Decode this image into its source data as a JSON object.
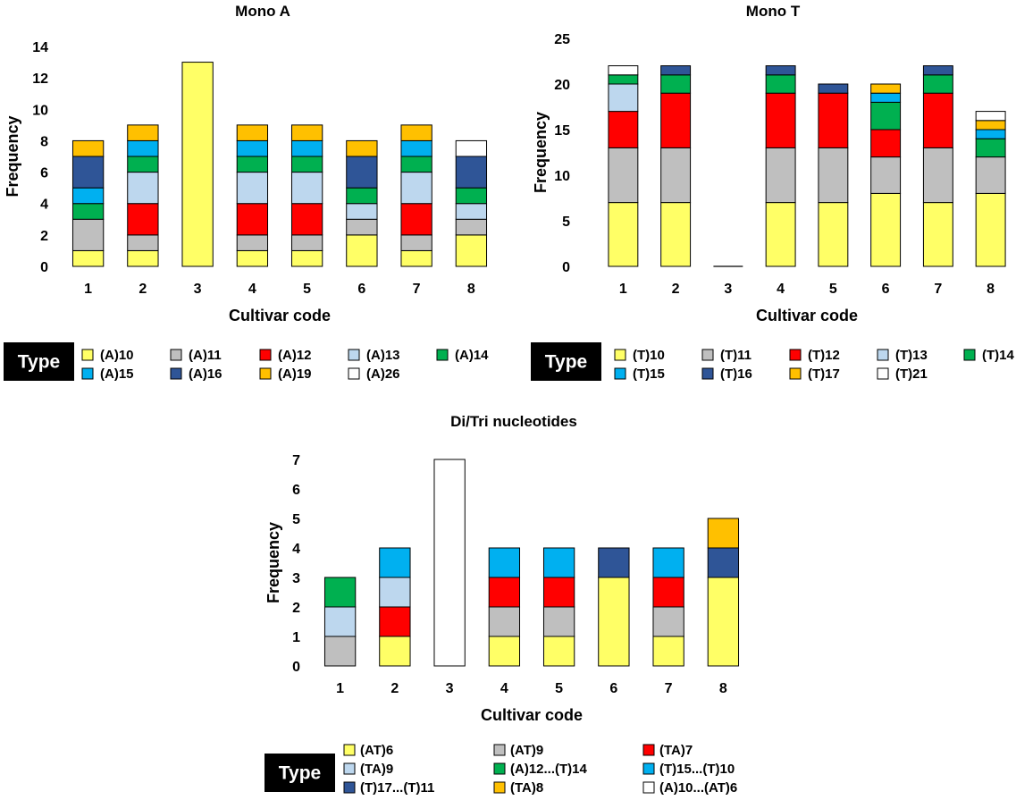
{
  "colors": {
    "y": "#FFFF66",
    "g": "#BFBFBF",
    "r": "#FF0000",
    "lb": "#BDD7EE",
    "gr": "#00B050",
    "c": "#00B0F0",
    "db": "#2F5597",
    "o": "#FFC000",
    "w": "#FFFFFF"
  },
  "chart_data": [
    {
      "type": "bar",
      "stacked": true,
      "title": "Mono A",
      "xlabel": "Cultivar code",
      "ylabel": "Frequency",
      "categories": [
        "1",
        "2",
        "3",
        "4",
        "5",
        "6",
        "7",
        "8"
      ],
      "ylim": [
        0,
        14
      ],
      "yticks": [
        0,
        2,
        4,
        6,
        8,
        10,
        12,
        14
      ],
      "legend_title": "Type",
      "series": [
        {
          "name": "(A)10",
          "color": "y",
          "values": [
            1,
            1,
            13,
            1,
            1,
            2,
            1,
            2
          ]
        },
        {
          "name": "(A)11",
          "color": "g",
          "values": [
            2,
            1,
            0,
            1,
            1,
            1,
            1,
            1
          ]
        },
        {
          "name": "(A)12",
          "color": "r",
          "values": [
            0,
            2,
            0,
            2,
            2,
            0,
            2,
            0
          ]
        },
        {
          "name": "(A)13",
          "color": "lb",
          "values": [
            0,
            2,
            0,
            2,
            2,
            1,
            2,
            1
          ]
        },
        {
          "name": "(A)14",
          "color": "gr",
          "values": [
            1,
            1,
            0,
            1,
            1,
            1,
            1,
            1
          ]
        },
        {
          "name": "(A)15",
          "color": "c",
          "values": [
            1,
            1,
            0,
            1,
            1,
            0,
            1,
            0
          ]
        },
        {
          "name": "(A)16",
          "color": "db",
          "values": [
            2,
            0,
            0,
            0,
            0,
            2,
            0,
            2
          ]
        },
        {
          "name": "(A)19",
          "color": "o",
          "values": [
            1,
            1,
            0,
            1,
            1,
            1,
            1,
            0
          ]
        },
        {
          "name": "(A)26",
          "color": "w",
          "values": [
            0,
            0,
            0,
            0,
            0,
            0,
            0,
            1
          ]
        }
      ]
    },
    {
      "type": "bar",
      "stacked": true,
      "title": "Mono T",
      "xlabel": "Cultivar code",
      "ylabel": "Frequency",
      "categories": [
        "1",
        "2",
        "3",
        "4",
        "5",
        "6",
        "7",
        "8"
      ],
      "ylim": [
        0,
        25
      ],
      "yticks": [
        0,
        5,
        10,
        15,
        20,
        25
      ],
      "legend_title": "Type",
      "series": [
        {
          "name": "(T)10",
          "color": "y",
          "values": [
            7,
            7,
            0,
            7,
            7,
            8,
            7,
            8
          ]
        },
        {
          "name": "(T)11",
          "color": "g",
          "values": [
            6,
            6,
            0,
            6,
            6,
            4,
            6,
            4
          ]
        },
        {
          "name": "(T)12",
          "color": "r",
          "values": [
            4,
            6,
            0,
            6,
            6,
            3,
            6,
            0
          ]
        },
        {
          "name": "(T)13",
          "color": "lb",
          "values": [
            3,
            0,
            0,
            0,
            0,
            0,
            0,
            0
          ]
        },
        {
          "name": "(T)14",
          "color": "gr",
          "values": [
            1,
            2,
            0,
            2,
            0,
            3,
            2,
            2
          ]
        },
        {
          "name": "(T)15",
          "color": "c",
          "values": [
            0,
            0,
            0,
            0,
            0,
            1,
            0,
            1
          ]
        },
        {
          "name": "(T)16",
          "color": "db",
          "values": [
            0,
            1,
            0,
            1,
            1,
            0,
            1,
            0
          ]
        },
        {
          "name": "(T)17",
          "color": "o",
          "values": [
            0,
            0,
            0,
            0,
            0,
            1,
            0,
            1
          ]
        },
        {
          "name": "(T)21",
          "color": "w",
          "values": [
            1,
            0,
            0,
            0,
            0,
            0,
            0,
            1
          ]
        }
      ]
    },
    {
      "type": "bar",
      "stacked": true,
      "title": "Di/Tri nucleotides",
      "xlabel": "Cultivar code",
      "ylabel": "Frequency",
      "categories": [
        "1",
        "2",
        "3",
        "4",
        "5",
        "6",
        "7",
        "8"
      ],
      "ylim": [
        0,
        7
      ],
      "yticks": [
        0,
        1,
        2,
        3,
        4,
        5,
        6,
        7
      ],
      "legend_title": "Type",
      "series": [
        {
          "name": "(AT)6",
          "color": "y",
          "values": [
            0,
            1,
            0,
            1,
            1,
            3,
            1,
            3
          ]
        },
        {
          "name": "(AT)9",
          "color": "g",
          "values": [
            1,
            0,
            0,
            1,
            1,
            0,
            1,
            0
          ]
        },
        {
          "name": "(TA)7",
          "color": "r",
          "values": [
            0,
            1,
            0,
            1,
            1,
            0,
            1,
            0
          ]
        },
        {
          "name": "(TA)9",
          "color": "lb",
          "values": [
            1,
            1,
            0,
            0,
            0,
            0,
            0,
            0
          ]
        },
        {
          "name": "(A)12...(T)14",
          "color": "gr",
          "values": [
            1,
            0,
            0,
            0,
            0,
            0,
            0,
            0
          ]
        },
        {
          "name": "(T)15...(T)10",
          "color": "c",
          "values": [
            0,
            1,
            0,
            1,
            1,
            0,
            1,
            0
          ]
        },
        {
          "name": "(T)17...(T)11",
          "color": "db",
          "values": [
            0,
            0,
            0,
            0,
            0,
            1,
            0,
            1
          ]
        },
        {
          "name": "(TA)8",
          "color": "o",
          "values": [
            0,
            0,
            0,
            0,
            0,
            0,
            0,
            1
          ]
        },
        {
          "name": "(A)10...(AT)6",
          "color": "w",
          "values": [
            0,
            0,
            7,
            0,
            0,
            0,
            0,
            0
          ]
        }
      ]
    }
  ]
}
